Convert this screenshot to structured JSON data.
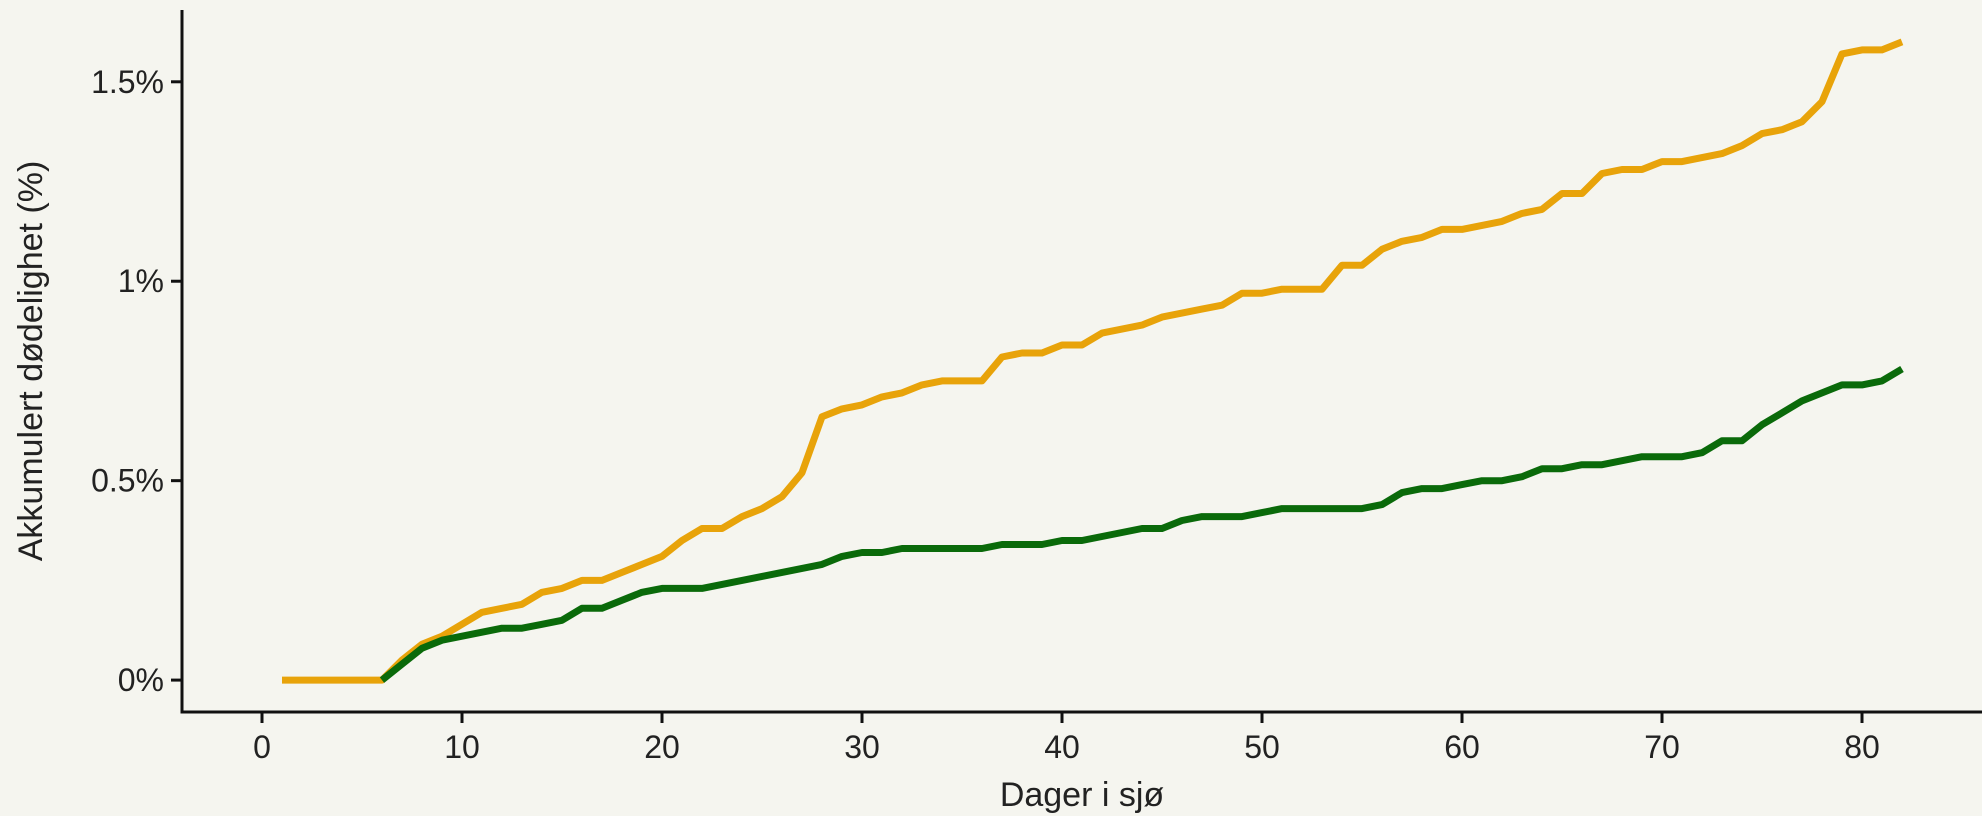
{
  "chart_data": {
    "type": "line",
    "xlabel": "Dager i sjø",
    "ylabel": "Akkumulert dødelighet (%)",
    "xlim": [
      -4,
      86
    ],
    "ylim": [
      -0.08,
      1.68
    ],
    "x_ticks": [
      0,
      10,
      20,
      30,
      40,
      50,
      60,
      70,
      80
    ],
    "x_tick_labels": [
      "0",
      "10",
      "20",
      "30",
      "40",
      "50",
      "60",
      "70",
      "80"
    ],
    "y_ticks": [
      0,
      0.5,
      1,
      1.5
    ],
    "y_tick_labels": [
      "0%",
      "0.5%",
      "1%",
      "1.5%"
    ],
    "grid": false,
    "legend": "none",
    "series": [
      {
        "color": "#e8a30a",
        "x": [
          1,
          2,
          3,
          4,
          5,
          6,
          7,
          8,
          9,
          10,
          11,
          12,
          13,
          14,
          15,
          16,
          17,
          18,
          19,
          20,
          21,
          22,
          23,
          24,
          25,
          26,
          27,
          28,
          29,
          30,
          31,
          32,
          33,
          34,
          35,
          36,
          37,
          38,
          39,
          40,
          41,
          42,
          43,
          44,
          45,
          46,
          47,
          48,
          49,
          50,
          51,
          52,
          53,
          54,
          55,
          56,
          57,
          58,
          59,
          60,
          61,
          62,
          63,
          64,
          65,
          66,
          67,
          68,
          69,
          70,
          71,
          72,
          73,
          74,
          75,
          76,
          77,
          78,
          79,
          80,
          81,
          82
        ],
        "values": [
          0,
          0,
          0,
          0,
          0,
          0,
          0.05,
          0.09,
          0.11,
          0.14,
          0.17,
          0.18,
          0.19,
          0.22,
          0.23,
          0.25,
          0.25,
          0.27,
          0.29,
          0.31,
          0.35,
          0.38,
          0.38,
          0.41,
          0.43,
          0.46,
          0.52,
          0.66,
          0.68,
          0.69,
          0.71,
          0.72,
          0.74,
          0.75,
          0.75,
          0.75,
          0.81,
          0.82,
          0.82,
          0.84,
          0.84,
          0.87,
          0.88,
          0.89,
          0.91,
          0.92,
          0.93,
          0.94,
          0.97,
          0.97,
          0.98,
          0.98,
          0.98,
          1.04,
          1.04,
          1.08,
          1.1,
          1.11,
          1.13,
          1.13,
          1.14,
          1.15,
          1.17,
          1.18,
          1.22,
          1.22,
          1.27,
          1.28,
          1.28,
          1.3,
          1.3,
          1.31,
          1.32,
          1.34,
          1.37,
          1.38,
          1.4,
          1.45,
          1.57,
          1.58,
          1.58,
          1.6
        ]
      },
      {
        "color": "#0a6a0a",
        "x": [
          6,
          7,
          8,
          9,
          10,
          11,
          12,
          13,
          14,
          15,
          16,
          17,
          18,
          19,
          20,
          21,
          22,
          23,
          24,
          25,
          26,
          27,
          28,
          29,
          30,
          31,
          32,
          33,
          34,
          35,
          36,
          37,
          38,
          39,
          40,
          41,
          42,
          43,
          44,
          45,
          46,
          47,
          48,
          49,
          50,
          51,
          52,
          53,
          54,
          55,
          56,
          57,
          58,
          59,
          60,
          61,
          62,
          63,
          64,
          65,
          66,
          67,
          68,
          69,
          70,
          71,
          72,
          73,
          74,
          75,
          76,
          77,
          78,
          79,
          80,
          81,
          82
        ],
        "values": [
          0,
          0.04,
          0.08,
          0.1,
          0.11,
          0.12,
          0.13,
          0.13,
          0.14,
          0.15,
          0.18,
          0.18,
          0.2,
          0.22,
          0.23,
          0.23,
          0.23,
          0.24,
          0.25,
          0.26,
          0.27,
          0.28,
          0.29,
          0.31,
          0.32,
          0.32,
          0.33,
          0.33,
          0.33,
          0.33,
          0.33,
          0.34,
          0.34,
          0.34,
          0.35,
          0.35,
          0.36,
          0.37,
          0.38,
          0.38,
          0.4,
          0.41,
          0.41,
          0.41,
          0.42,
          0.43,
          0.43,
          0.43,
          0.43,
          0.43,
          0.44,
          0.47,
          0.48,
          0.48,
          0.49,
          0.5,
          0.5,
          0.51,
          0.53,
          0.53,
          0.54,
          0.54,
          0.55,
          0.56,
          0.56,
          0.56,
          0.57,
          0.6,
          0.6,
          0.64,
          0.67,
          0.7,
          0.72,
          0.74,
          0.74,
          0.75,
          0.78
        ]
      }
    ]
  }
}
